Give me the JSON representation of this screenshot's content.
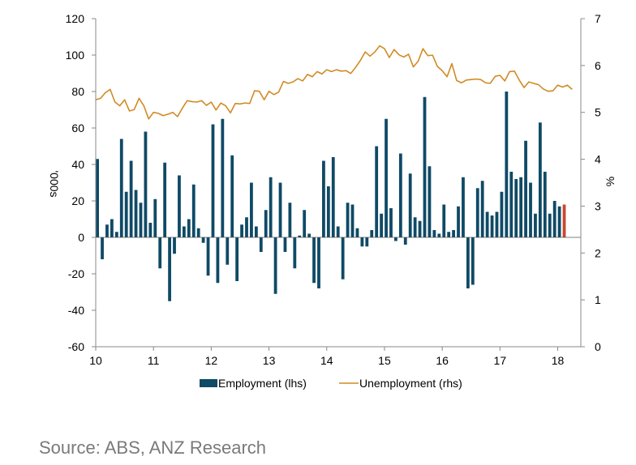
{
  "chart_data": {
    "type": "bar+line",
    "title": "",
    "left_axis": {
      "label": "'000s",
      "min": -60,
      "max": 120,
      "step": 20
    },
    "right_axis": {
      "label": "%",
      "min": 0,
      "max": 7,
      "step": 1
    },
    "x_axis": {
      "min": 10,
      "max": 18.4,
      "ticks": [
        "10",
        "11",
        "12",
        "13",
        "14",
        "15",
        "16",
        "17",
        "18"
      ]
    },
    "colors": {
      "employment": "#0f4a66",
      "employment_latest": "#c8482f",
      "unemployment": "#d08b25",
      "axis": "#888888"
    },
    "employment": {
      "name": "Employment (lhs)",
      "start": 10.0,
      "step": 0.08333,
      "values": [
        43,
        -12,
        7,
        10,
        3,
        54,
        25,
        42,
        26,
        19,
        58,
        8,
        21,
        -17,
        41,
        -35,
        -9,
        34,
        6,
        10,
        29,
        5,
        -3,
        -21,
        62,
        -25,
        65,
        -15,
        45,
        -24,
        7,
        11,
        30,
        6,
        -8,
        15,
        33,
        -31,
        30,
        -8,
        19,
        -17,
        1,
        15,
        2,
        -25,
        -28,
        42,
        28,
        44,
        6,
        -23,
        19,
        18,
        5,
        -5,
        -5,
        4,
        50,
        13,
        65,
        16,
        -2,
        46,
        -4,
        35,
        11,
        9,
        77,
        39,
        4,
        2,
        18,
        3,
        4,
        17,
        33,
        -28,
        -26,
        27,
        31,
        14,
        12,
        14,
        25,
        80,
        36,
        32,
        33,
        53,
        30,
        13,
        63,
        36,
        13,
        20,
        17,
        18
      ]
    },
    "unemployment": {
      "name": "Unemployment (rhs)",
      "start": 10.0,
      "step": 0.08333,
      "values": [
        5.27,
        5.3,
        5.42,
        5.49,
        5.22,
        5.14,
        5.27,
        5.03,
        5.06,
        5.3,
        5.14,
        4.86,
        5.0,
        4.98,
        4.93,
        4.96,
        5.0,
        4.91,
        5.09,
        5.25,
        5.23,
        5.22,
        5.25,
        5.15,
        5.22,
        5.05,
        5.2,
        5.14,
        4.99,
        5.19,
        5.18,
        5.2,
        5.19,
        5.46,
        5.45,
        5.27,
        5.45,
        5.38,
        5.43,
        5.66,
        5.62,
        5.65,
        5.72,
        5.67,
        5.81,
        5.76,
        5.87,
        5.82,
        5.91,
        5.87,
        5.91,
        5.88,
        5.89,
        5.83,
        5.96,
        6.11,
        6.29,
        6.2,
        6.29,
        6.42,
        6.36,
        6.17,
        6.34,
        6.23,
        6.18,
        6.24,
        5.97,
        6.09,
        6.36,
        6.21,
        6.22,
        5.98,
        5.89,
        5.76,
        6.04,
        5.68,
        5.63,
        5.69,
        5.7,
        5.71,
        5.7,
        5.63,
        5.62,
        5.77,
        5.79,
        5.67,
        5.87,
        5.88,
        5.69,
        5.53,
        5.65,
        5.62,
        5.59,
        5.5,
        5.45,
        5.46,
        5.58,
        5.54,
        5.58,
        5.49
      ]
    },
    "legend": [
      "Employment (lhs)",
      "Unemployment (rhs)"
    ],
    "legend_position": "bottom",
    "grid": false
  },
  "source": "Source: ABS, ANZ Research"
}
